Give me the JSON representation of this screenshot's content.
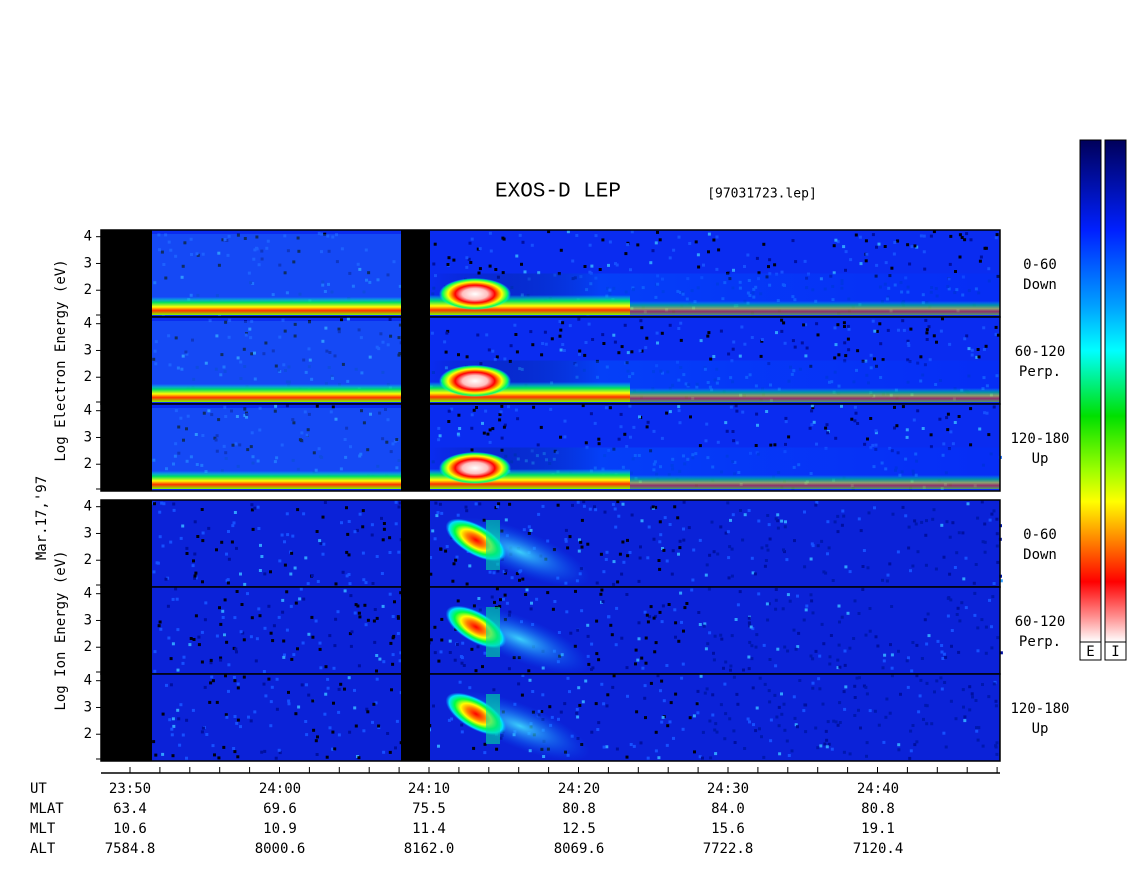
{
  "chart_data": {
    "type": "spectrogram",
    "title": "EXOS-D LEP",
    "file": "[97031723.lep]",
    "date": "Mar.17,'97",
    "ylim": [
      1,
      4.25
    ],
    "yticks": [
      2,
      3,
      4
    ],
    "groups": [
      {
        "kind": "electron",
        "ylabel": "Log Electron Energy (eV)",
        "panels": [
          {
            "label": [
              "0-60",
              "Down"
            ]
          },
          {
            "label": [
              "60-120",
              "Perp."
            ]
          },
          {
            "label": [
              "120-180",
              "Up"
            ]
          }
        ]
      },
      {
        "kind": "ion",
        "ylabel": "Log Ion Energy (eV)",
        "panels": [
          {
            "label": [
              "0-60",
              "Down"
            ]
          },
          {
            "label": [
              "60-120",
              "Perp."
            ]
          },
          {
            "label": [
              "120-180",
              "Up"
            ]
          }
        ]
      }
    ],
    "xrows": [
      {
        "name": "UT",
        "values": [
          "23:50",
          "24:00",
          "24:10",
          "24:20",
          "24:30",
          "24:40"
        ]
      },
      {
        "name": "MLAT",
        "values": [
          "63.4",
          "69.6",
          "75.5",
          "80.8",
          "84.0",
          "80.8"
        ]
      },
      {
        "name": "MLT",
        "values": [
          "10.6",
          "10.9",
          "11.4",
          "12.5",
          "15.6",
          "19.1"
        ]
      },
      {
        "name": "ALT",
        "values": [
          "7584.8",
          "8000.6",
          "8162.0",
          "8069.6",
          "7722.8",
          "7120.4"
        ]
      }
    ],
    "colorbar_labels": [
      "E",
      "I"
    ]
  }
}
